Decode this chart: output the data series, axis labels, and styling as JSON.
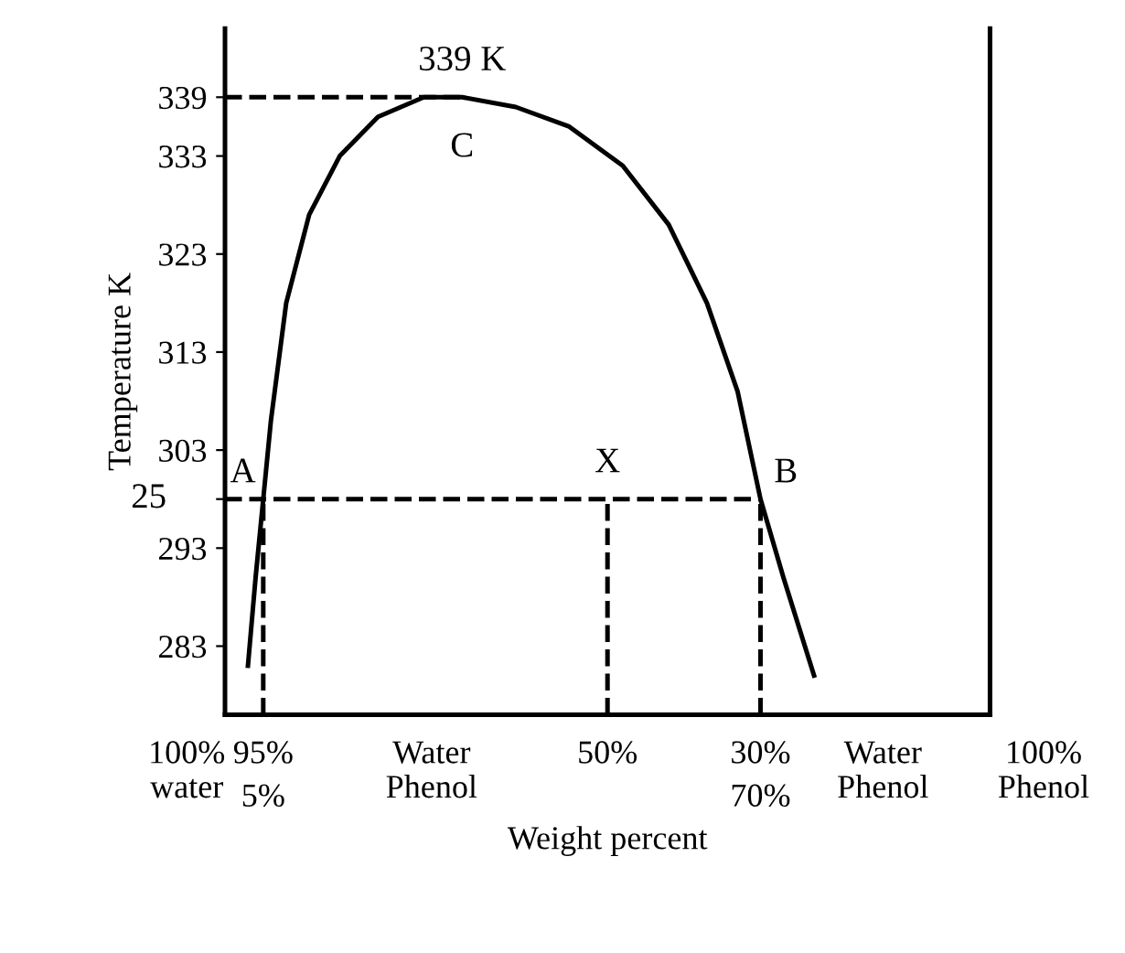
{
  "chart_data": {
    "type": "line",
    "xlabel": "Weight percent",
    "ylabel": "Temperature K",
    "xlim": [
      100,
      0
    ],
    "ylim": [
      276,
      346
    ],
    "xticks": [
      {
        "value": 95,
        "label": "95%"
      },
      {
        "value": 50,
        "label": "50%"
      },
      {
        "value": 30,
        "label": "30%"
      }
    ],
    "yticks": [
      283,
      293,
      {
        "value": 298,
        "label": null
      },
      303,
      313,
      323,
      333,
      339
    ],
    "grid": false,
    "legend": false,
    "marker": "none",
    "series": [
      {
        "color": "#000000",
        "line_style": "solid",
        "x": [
          97,
          96,
          95,
          94,
          92,
          89,
          85,
          80,
          74,
          69,
          62,
          55,
          48,
          42,
          37,
          33,
          30,
          27,
          23
        ],
        "values": [
          281,
          290,
          298,
          306,
          318,
          327,
          333,
          337,
          339,
          339,
          338,
          336,
          332,
          326,
          318,
          309,
          298,
          290,
          280
        ]
      },
      {
        "color": "#000000",
        "line_style": "dashed",
        "x": [
          100,
          69
        ],
        "values": [
          339,
          339
        ]
      },
      {
        "color": "#000000",
        "line_style": "dashed",
        "x": [
          100,
          30
        ],
        "values": [
          298,
          298
        ]
      },
      {
        "color": "#000000",
        "line_style": "dashed",
        "x": [
          95,
          95
        ],
        "values": [
          276,
          298
        ]
      },
      {
        "color": "#000000",
        "line_style": "dashed",
        "x": [
          50,
          50
        ],
        "values": [
          276,
          298
        ]
      },
      {
        "color": "#000000",
        "line_style": "dashed",
        "x": [
          30,
          30
        ],
        "values": [
          276,
          298
        ]
      }
    ],
    "annotations": [
      {
        "text": "339 K",
        "x": 69,
        "y": 339
      },
      {
        "text": "C",
        "x": 69,
        "y": 339
      },
      {
        "text": "A",
        "x": 95,
        "y": 298
      },
      {
        "text": "X",
        "x": 50,
        "y": 298
      },
      {
        "text": "B",
        "x": 30,
        "y": 298
      },
      {
        "text": "25",
        "x": 100,
        "y": 298
      },
      "100%\nwater",
      "5%",
      "Water\nPhenol",
      "70%",
      "Water\nPhenol",
      "100%\nPhenol"
    ]
  }
}
